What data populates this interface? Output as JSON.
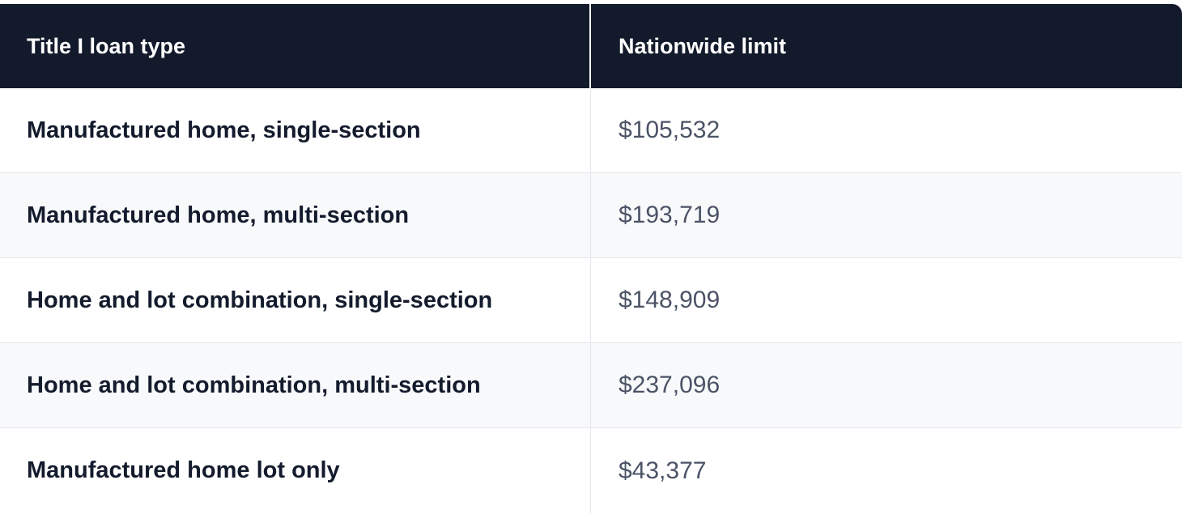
{
  "table": {
    "headers": [
      "Title I loan type",
      "Nationwide limit"
    ],
    "rows": [
      {
        "type": "Manufactured home, single-section",
        "limit": "$105,532"
      },
      {
        "type": "Manufactured home, multi-section",
        "limit": "$193,719"
      },
      {
        "type": "Home and lot combination, single-section",
        "limit": "$148,909"
      },
      {
        "type": "Home and lot combination, multi-section",
        "limit": "$237,096"
      },
      {
        "type": "Manufactured home lot only",
        "limit": "$43,377"
      }
    ]
  },
  "colors": {
    "header_bg": "#131a2b",
    "header_text": "#ffffff",
    "row_alt_bg": "#f8f9fb",
    "label_text": "#141b2d",
    "value_text": "#4b5366",
    "border": "#e3e6ec"
  }
}
